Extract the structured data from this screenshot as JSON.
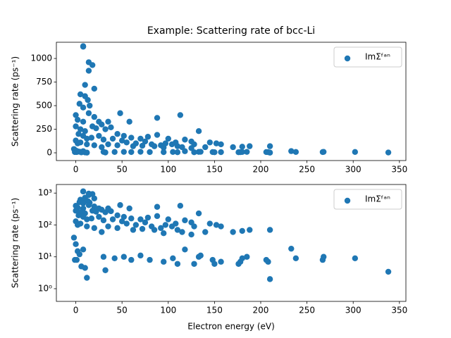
{
  "chart_data": [
    {
      "type": "scatter",
      "title": "Example: Scattering rate of bcc-Li",
      "y_label": "Scattering rate (ps⁻¹)",
      "xlim": [
        -21,
        357
      ],
      "xticks": [
        0,
        50,
        100,
        150,
        200,
        250,
        300,
        350
      ],
      "ylim": [
        -82,
        1172
      ],
      "yticks": [
        0,
        250,
        500,
        750,
        1000
      ],
      "yscale": "linear",
      "legend": "upper right",
      "x": [
        8,
        8,
        14,
        18,
        14,
        10,
        20,
        5,
        10,
        13,
        4,
        8,
        15,
        0,
        2,
        8,
        14,
        20,
        25,
        35,
        48,
        58,
        88,
        113,
        133,
        0,
        5,
        10,
        18,
        22,
        28,
        32,
        38,
        45,
        52,
        60,
        70,
        78,
        88,
        100,
        108,
        118,
        125,
        145,
        3,
        8,
        12,
        17,
        25,
        30,
        40,
        50,
        55,
        65,
        75,
        82,
        92,
        97,
        104,
        115,
        128,
        140,
        152,
        157,
        170,
        180,
        188,
        210,
        0,
        2,
        5,
        12,
        20,
        28,
        35,
        45,
        62,
        72,
        85,
        95,
        110,
        125,
        -2,
        0,
        2,
        -1,
        1,
        4,
        6,
        10,
        12,
        8,
        32,
        30,
        42,
        52,
        60,
        70,
        80,
        95,
        105,
        110,
        118,
        128,
        133,
        135,
        148,
        150,
        157,
        176,
        178,
        180,
        185,
        208,
        206,
        210,
        233,
        238,
        267,
        268,
        302,
        338
      ],
      "series": [
        {
          "name": "ImΣᶠᵃⁿ",
          "color": "#1f77b4",
          "values": [
            1130,
            1125,
            960,
            930,
            870,
            720,
            680,
            620,
            600,
            560,
            520,
            480,
            500,
            400,
            350,
            330,
            420,
            380,
            330,
            330,
            420,
            330,
            370,
            400,
            230,
            280,
            250,
            230,
            280,
            260,
            300,
            250,
            270,
            200,
            180,
            160,
            150,
            170,
            190,
            150,
            110,
            140,
            120,
            110,
            200,
            180,
            150,
            160,
            180,
            140,
            150,
            130,
            110,
            100,
            120,
            90,
            80,
            100,
            90,
            60,
            90,
            60,
            100,
            90,
            60,
            65,
            70,
            70,
            130,
            100,
            110,
            90,
            80,
            60,
            90,
            80,
            70,
            75,
            70,
            55,
            70,
            50,
            40,
            25,
            15,
            8,
            8,
            12,
            5,
            4.5,
            2.2,
            17,
            3.8,
            10,
            9,
            10,
            8,
            11,
            8,
            7,
            9,
            6,
            17,
            6,
            10,
            11,
            8,
            6,
            7,
            6,
            7,
            9,
            10,
            7,
            8,
            2,
            18,
            9,
            8,
            10,
            9,
            3.4
          ]
        }
      ]
    },
    {
      "type": "scatter",
      "x_label": "Electron energy (eV)",
      "y_label": "Scattering rate (ps⁻¹)",
      "xlim": [
        -21,
        357
      ],
      "xticks": [
        0,
        50,
        100,
        150,
        200,
        250,
        300,
        350
      ],
      "ylim": [
        0.4,
        1860
      ],
      "yticks": [
        {
          "value": 1,
          "label": "10⁰"
        },
        {
          "value": 10,
          "label": "10¹"
        },
        {
          "value": 100,
          "label": "10²"
        },
        {
          "value": 1000,
          "label": "10³"
        }
      ],
      "yscale": "log",
      "legend": "upper right",
      "x": [
        8,
        8,
        14,
        18,
        14,
        10,
        20,
        5,
        10,
        13,
        4,
        8,
        15,
        0,
        2,
        8,
        14,
        20,
        25,
        35,
        48,
        58,
        88,
        113,
        133,
        0,
        5,
        10,
        18,
        22,
        28,
        32,
        38,
        45,
        52,
        60,
        70,
        78,
        88,
        100,
        108,
        118,
        125,
        145,
        3,
        8,
        12,
        17,
        25,
        30,
        40,
        50,
        55,
        65,
        75,
        82,
        92,
        97,
        104,
        115,
        128,
        140,
        152,
        157,
        170,
        180,
        188,
        210,
        0,
        2,
        5,
        12,
        20,
        28,
        35,
        45,
        62,
        72,
        85,
        95,
        110,
        125,
        -2,
        0,
        2,
        -1,
        1,
        4,
        6,
        10,
        12,
        8,
        32,
        30,
        42,
        52,
        60,
        70,
        80,
        95,
        105,
        110,
        118,
        128,
        133,
        135,
        148,
        150,
        157,
        176,
        178,
        180,
        185,
        208,
        206,
        210,
        233,
        238,
        267,
        268,
        302,
        338
      ],
      "series": [
        {
          "name": "ImΣᶠᵃⁿ",
          "color": "#1f77b4",
          "values": [
            1130,
            1125,
            960,
            930,
            870,
            720,
            680,
            620,
            600,
            560,
            520,
            480,
            500,
            400,
            350,
            330,
            420,
            380,
            330,
            330,
            420,
            330,
            370,
            400,
            230,
            280,
            250,
            230,
            280,
            260,
            300,
            250,
            270,
            200,
            180,
            160,
            150,
            170,
            190,
            150,
            110,
            140,
            120,
            110,
            200,
            180,
            150,
            160,
            180,
            140,
            150,
            130,
            110,
            100,
            120,
            90,
            80,
            100,
            90,
            60,
            90,
            60,
            100,
            90,
            60,
            65,
            70,
            70,
            130,
            100,
            110,
            90,
            80,
            60,
            90,
            80,
            70,
            75,
            70,
            55,
            70,
            50,
            40,
            25,
            15,
            8,
            8,
            12,
            5,
            4.5,
            2.2,
            17,
            3.8,
            10,
            9,
            10,
            8,
            11,
            8,
            7,
            9,
            6,
            17,
            6,
            10,
            11,
            8,
            6,
            7,
            6,
            7,
            9,
            10,
            7,
            8,
            2,
            18,
            9,
            8,
            10,
            9,
            3.4
          ]
        }
      ]
    }
  ]
}
